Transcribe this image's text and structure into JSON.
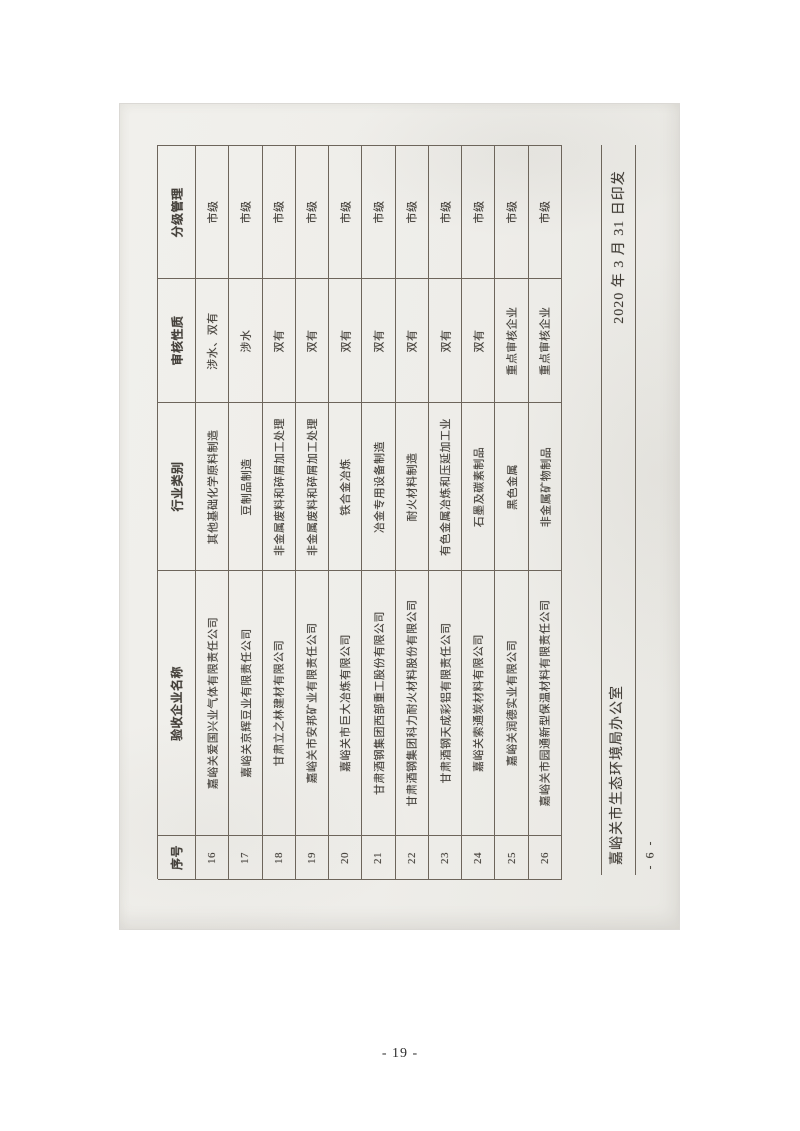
{
  "document": {
    "table": {
      "columns": [
        "序号",
        "验收企业名称",
        "行业类别",
        "审核性质",
        "分级管理"
      ],
      "rows": [
        {
          "no": "16",
          "name": "嘉峪关爱国兴业气体有限责任公司",
          "industry": "其他基础化学原料制造",
          "audit": "涉水、双有",
          "grade": "市级"
        },
        {
          "no": "17",
          "name": "嘉峪关京辉豆业有限责任公司",
          "industry": "豆制品制造",
          "audit": "涉水",
          "grade": "市级"
        },
        {
          "no": "18",
          "name": "甘肃立之林建材有限公司",
          "industry": "非金属废料和碎屑加工处理",
          "audit": "双有",
          "grade": "市级"
        },
        {
          "no": "19",
          "name": "嘉峪关市安邦矿业有限责任公司",
          "industry": "非金属废料和碎屑加工处理",
          "audit": "双有",
          "grade": "市级"
        },
        {
          "no": "20",
          "name": "嘉峪关市巨大冶炼有限公司",
          "industry": "铁合金冶炼",
          "audit": "双有",
          "grade": "市级"
        },
        {
          "no": "21",
          "name": "甘肃酒钢集团西部重工股份有限公司",
          "industry": "冶金专用设备制造",
          "audit": "双有",
          "grade": "市级"
        },
        {
          "no": "22",
          "name": "甘肃酒钢集团科力耐火材料股份有限公司",
          "industry": "耐火材料制造",
          "audit": "双有",
          "grade": "市级"
        },
        {
          "no": "23",
          "name": "甘肃酒钢天成彩铝有限责任公司",
          "industry": "有色金属冶炼和压延加工业",
          "audit": "双有",
          "grade": "市级"
        },
        {
          "no": "24",
          "name": "嘉峪关索通炭材料有限公司",
          "industry": "石墨及碳素制品",
          "audit": "双有",
          "grade": "市级"
        },
        {
          "no": "25",
          "name": "嘉峪关润德实业有限公司",
          "industry": "黑色金属",
          "audit": "重点审核企业",
          "grade": "市级"
        },
        {
          "no": "26",
          "name": "嘉峪关市园通新型保温材料有限责任公司",
          "industry": "非金属矿物制品",
          "audit": "重点审核企业",
          "grade": "市级"
        }
      ]
    },
    "colophon": {
      "issuing_office": "嘉峪关市生态环境局办公室",
      "print_date": "2020 年 3 月 31 日印发",
      "scan_page_number": "- 6 -"
    }
  },
  "page": {
    "page_number": "- 19 -"
  },
  "colors": {
    "paper": "#eeede9",
    "table_line": "#6d655b",
    "ink": "#44403a",
    "page_background": "#ffffff"
  }
}
